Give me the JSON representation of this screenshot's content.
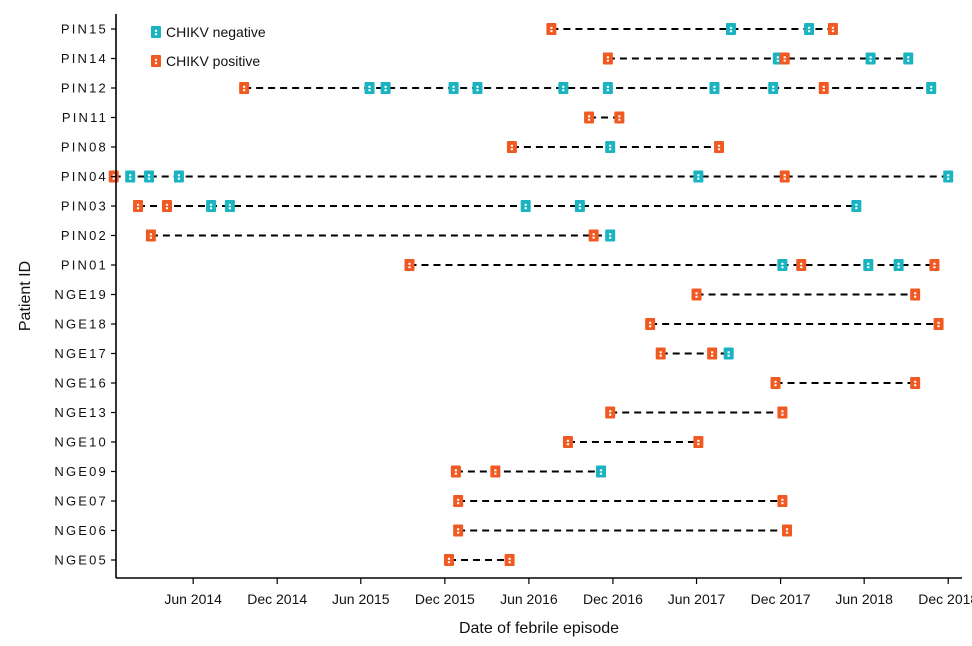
{
  "chart_data": {
    "type": "scatter",
    "xlabel": "Date of febrile episode",
    "ylabel": "Patient ID",
    "legend": {
      "position": "top-left",
      "items": [
        {
          "name": "CHIKV negative",
          "color": "#1ab3c0",
          "icon": "square-dot-marker"
        },
        {
          "name": "CHIKV positive",
          "color": "#f05a22",
          "icon": "square-dot-marker"
        }
      ]
    },
    "xlim": [
      "2013-12-15",
      "2018-12-31"
    ],
    "xticks": [
      {
        "date": "2014-06-01",
        "label": "Jun 2014"
      },
      {
        "date": "2014-12-01",
        "label": "Dec 2014"
      },
      {
        "date": "2015-06-01",
        "label": "Jun 2015"
      },
      {
        "date": "2015-12-01",
        "label": "Dec 2015"
      },
      {
        "date": "2016-06-01",
        "label": "Jun 2016"
      },
      {
        "date": "2016-12-01",
        "label": "Dec 2016"
      },
      {
        "date": "2017-06-01",
        "label": "Jun 2017"
      },
      {
        "date": "2017-12-01",
        "label": "Dec 2017"
      },
      {
        "date": "2018-06-01",
        "label": "Jun 2018"
      },
      {
        "date": "2018-12-01",
        "label": "Dec 2018"
      }
    ],
    "patients": [
      {
        "id": "PIN15",
        "episodes": [
          {
            "date": "2016-07-20",
            "status": "positive"
          },
          {
            "date": "2017-08-15",
            "status": "negative"
          },
          {
            "date": "2018-02-01",
            "status": "negative"
          },
          {
            "date": "2018-03-25",
            "status": "positive"
          }
        ]
      },
      {
        "id": "PIN14",
        "episodes": [
          {
            "date": "2016-11-20",
            "status": "positive"
          },
          {
            "date": "2017-11-25",
            "status": "negative"
          },
          {
            "date": "2017-12-10",
            "status": "positive"
          },
          {
            "date": "2018-06-15",
            "status": "negative"
          },
          {
            "date": "2018-09-05",
            "status": "negative"
          }
        ]
      },
      {
        "id": "PIN12",
        "episodes": [
          {
            "date": "2014-09-20",
            "status": "positive"
          },
          {
            "date": "2015-06-20",
            "status": "negative"
          },
          {
            "date": "2015-07-25",
            "status": "negative"
          },
          {
            "date": "2015-12-20",
            "status": "negative"
          },
          {
            "date": "2016-02-10",
            "status": "negative"
          },
          {
            "date": "2016-08-15",
            "status": "negative"
          },
          {
            "date": "2016-11-20",
            "status": "negative"
          },
          {
            "date": "2017-07-10",
            "status": "negative"
          },
          {
            "date": "2017-11-15",
            "status": "negative"
          },
          {
            "date": "2018-03-05",
            "status": "positive"
          },
          {
            "date": "2018-10-25",
            "status": "negative"
          }
        ]
      },
      {
        "id": "PIN11",
        "episodes": [
          {
            "date": "2016-10-10",
            "status": "positive"
          },
          {
            "date": "2016-12-15",
            "status": "positive"
          }
        ]
      },
      {
        "id": "PIN08",
        "episodes": [
          {
            "date": "2016-04-25",
            "status": "positive"
          },
          {
            "date": "2016-11-25",
            "status": "negative"
          },
          {
            "date": "2017-07-20",
            "status": "positive"
          }
        ]
      },
      {
        "id": "PIN04",
        "episodes": [
          {
            "date": "2013-12-10",
            "status": "positive"
          },
          {
            "date": "2014-01-15",
            "status": "negative"
          },
          {
            "date": "2014-02-25",
            "status": "negative"
          },
          {
            "date": "2014-05-01",
            "status": "negative"
          },
          {
            "date": "2017-06-05",
            "status": "negative"
          },
          {
            "date": "2017-12-10",
            "status": "positive"
          },
          {
            "date": "2018-12-01",
            "status": "negative"
          }
        ]
      },
      {
        "id": "PIN03",
        "episodes": [
          {
            "date": "2014-02-01",
            "status": "positive"
          },
          {
            "date": "2014-04-05",
            "status": "positive"
          },
          {
            "date": "2014-07-10",
            "status": "negative"
          },
          {
            "date": "2014-08-20",
            "status": "negative"
          },
          {
            "date": "2016-05-25",
            "status": "negative"
          },
          {
            "date": "2016-09-20",
            "status": "negative"
          },
          {
            "date": "2018-05-15",
            "status": "negative"
          }
        ]
      },
      {
        "id": "PIN02",
        "episodes": [
          {
            "date": "2014-03-01",
            "status": "positive"
          },
          {
            "date": "2016-10-20",
            "status": "positive"
          },
          {
            "date": "2016-11-25",
            "status": "negative"
          }
        ]
      },
      {
        "id": "PIN01",
        "episodes": [
          {
            "date": "2015-09-15",
            "status": "positive"
          },
          {
            "date": "2017-12-05",
            "status": "negative"
          },
          {
            "date": "2018-01-15",
            "status": "positive"
          },
          {
            "date": "2018-06-10",
            "status": "negative"
          },
          {
            "date": "2018-08-15",
            "status": "negative"
          },
          {
            "date": "2018-11-01",
            "status": "positive"
          }
        ]
      },
      {
        "id": "NGE19",
        "episodes": [
          {
            "date": "2017-06-01",
            "status": "positive"
          },
          {
            "date": "2018-09-20",
            "status": "positive"
          }
        ]
      },
      {
        "id": "NGE18",
        "episodes": [
          {
            "date": "2017-02-20",
            "status": "positive"
          },
          {
            "date": "2018-11-10",
            "status": "positive"
          }
        ]
      },
      {
        "id": "NGE17",
        "episodes": [
          {
            "date": "2017-03-15",
            "status": "positive"
          },
          {
            "date": "2017-07-05",
            "status": "positive"
          },
          {
            "date": "2017-08-10",
            "status": "negative"
          }
        ]
      },
      {
        "id": "NGE16",
        "episodes": [
          {
            "date": "2017-11-20",
            "status": "positive"
          },
          {
            "date": "2018-09-20",
            "status": "positive"
          }
        ]
      },
      {
        "id": "NGE13",
        "episodes": [
          {
            "date": "2016-11-25",
            "status": "positive"
          },
          {
            "date": "2017-12-05",
            "status": "positive"
          }
        ]
      },
      {
        "id": "NGE10",
        "episodes": [
          {
            "date": "2016-08-25",
            "status": "positive"
          },
          {
            "date": "2017-06-05",
            "status": "positive"
          }
        ]
      },
      {
        "id": "NGE09",
        "episodes": [
          {
            "date": "2015-12-25",
            "status": "positive"
          },
          {
            "date": "2016-03-20",
            "status": "positive"
          },
          {
            "date": "2016-11-05",
            "status": "negative"
          }
        ]
      },
      {
        "id": "NGE07",
        "episodes": [
          {
            "date": "2015-12-30",
            "status": "positive"
          },
          {
            "date": "2017-12-05",
            "status": "positive"
          }
        ]
      },
      {
        "id": "NGE06",
        "episodes": [
          {
            "date": "2015-12-30",
            "status": "positive"
          },
          {
            "date": "2017-12-15",
            "status": "positive"
          }
        ]
      },
      {
        "id": "NGE05",
        "episodes": [
          {
            "date": "2015-12-10",
            "status": "positive"
          },
          {
            "date": "2016-04-20",
            "status": "positive"
          }
        ]
      }
    ]
  }
}
